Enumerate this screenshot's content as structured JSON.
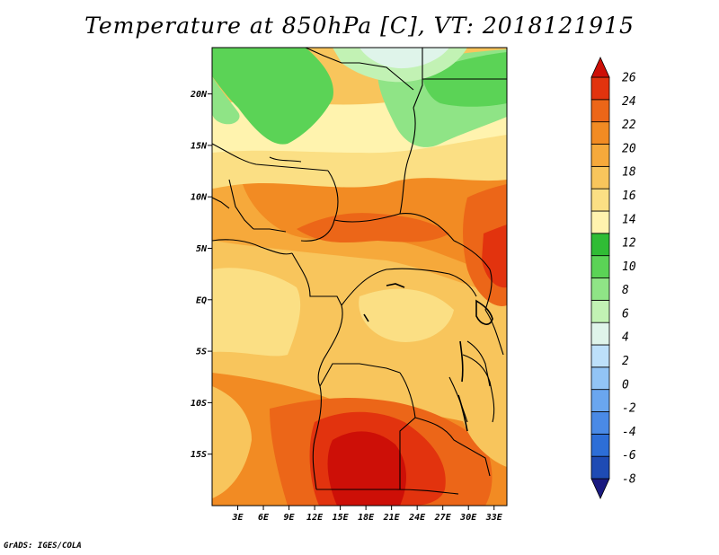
{
  "title": "Temperature at 850hPa [C], VT: 2018121915",
  "credit": "GrADS: IGES/COLA",
  "map": {
    "lon_range": [
      0,
      34.5
    ],
    "lat_range": [
      -20,
      24.5
    ],
    "lat_ticks": [
      {
        "value": 20,
        "label": "20N"
      },
      {
        "value": 15,
        "label": "15N"
      },
      {
        "value": 10,
        "label": "10N"
      },
      {
        "value": 5,
        "label": "5N"
      },
      {
        "value": 0,
        "label": "EQ"
      },
      {
        "value": -5,
        "label": "5S"
      },
      {
        "value": -10,
        "label": "10S"
      },
      {
        "value": -15,
        "label": "15S"
      }
    ],
    "lon_ticks": [
      {
        "value": 3,
        "label": "3E"
      },
      {
        "value": 6,
        "label": "6E"
      },
      {
        "value": 9,
        "label": "9E"
      },
      {
        "value": 12,
        "label": "12E"
      },
      {
        "value": 15,
        "label": "15E"
      },
      {
        "value": 18,
        "label": "18E"
      },
      {
        "value": 21,
        "label": "21E"
      },
      {
        "value": 24,
        "label": "24E"
      },
      {
        "value": 27,
        "label": "27E"
      },
      {
        "value": 30,
        "label": "30E"
      },
      {
        "value": 33,
        "label": "33E"
      }
    ]
  },
  "colorbar": {
    "colors": [
      "#1a1a80",
      "#1e4bb4",
      "#2d6ed7",
      "#4a8ae6",
      "#6aa6ef",
      "#92c4f5",
      "#bde0fa",
      "#dff4ea",
      "#c2f2b4",
      "#8fe486",
      "#5bd356",
      "#30bc35",
      "#fff3ae",
      "#fbdf84",
      "#f8c55c",
      "#f6a93b",
      "#f28b23",
      "#ec6618",
      "#e2330e",
      "#cd0f07"
    ],
    "labels": [
      "26",
      "24",
      "22",
      "20",
      "18",
      "16",
      "14",
      "12",
      "10",
      "8",
      "6",
      "4",
      "2",
      "0",
      "-2",
      "-4",
      "-6",
      "-8"
    ]
  }
}
